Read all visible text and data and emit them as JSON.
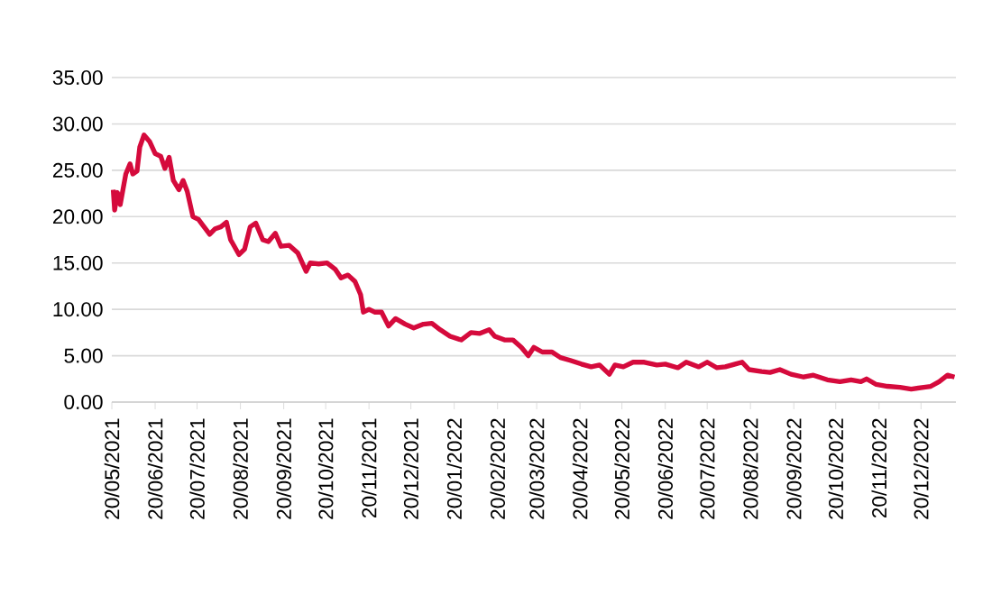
{
  "chart_data": {
    "type": "line",
    "color": "#d50a3c",
    "grid": "y",
    "ylim": [
      0,
      35
    ],
    "yticks": [
      {
        "value": 0,
        "label": "0.00"
      },
      {
        "value": 5,
        "label": "5.00"
      },
      {
        "value": 10,
        "label": "10.00"
      },
      {
        "value": 15,
        "label": "15.00"
      },
      {
        "value": 20,
        "label": "20.00"
      },
      {
        "value": 25,
        "label": "25.00"
      },
      {
        "value": 30,
        "label": "30.00"
      },
      {
        "value": 35,
        "label": "35.00"
      }
    ],
    "xlim": [
      "2021-05-20",
      "2023-01-14"
    ],
    "xticks": [
      {
        "value": "2021-05-20",
        "label": "20/05/2021"
      },
      {
        "value": "2021-06-20",
        "label": "20/06/2021"
      },
      {
        "value": "2021-07-20",
        "label": "20/07/2021"
      },
      {
        "value": "2021-08-20",
        "label": "20/08/2021"
      },
      {
        "value": "2021-09-20",
        "label": "20/09/2021"
      },
      {
        "value": "2021-10-20",
        "label": "20/10/2021"
      },
      {
        "value": "2021-11-20",
        "label": "20/11/2021"
      },
      {
        "value": "2021-12-20",
        "label": "20/12/2021"
      },
      {
        "value": "2022-01-20",
        "label": "20/01/2022"
      },
      {
        "value": "2022-02-20",
        "label": "20/02/2022"
      },
      {
        "value": "2022-03-20",
        "label": "20/03/2022"
      },
      {
        "value": "2022-04-20",
        "label": "20/04/2022"
      },
      {
        "value": "2022-05-20",
        "label": "20/05/2022"
      },
      {
        "value": "2022-06-20",
        "label": "20/06/2022"
      },
      {
        "value": "2022-07-20",
        "label": "20/07/2022"
      },
      {
        "value": "2022-08-20",
        "label": "20/08/2022"
      },
      {
        "value": "2022-09-20",
        "label": "20/09/2022"
      },
      {
        "value": "2022-10-20",
        "label": "20/10/2022"
      },
      {
        "value": "2022-11-20",
        "label": "20/11/2022"
      },
      {
        "value": "2022-12-20",
        "label": "20/12/2022"
      }
    ],
    "x": [
      "2021-05-21",
      "2021-05-22",
      "2021-05-24",
      "2021-05-26",
      "2021-05-30",
      "2021-06-02",
      "2021-06-04",
      "2021-06-07",
      "2021-06-09",
      "2021-06-12",
      "2021-06-16",
      "2021-06-20",
      "2021-06-24",
      "2021-06-27",
      "2021-06-30",
      "2021-07-03",
      "2021-07-07",
      "2021-07-10",
      "2021-07-13",
      "2021-07-17",
      "2021-07-21",
      "2021-07-24",
      "2021-07-29",
      "2021-08-02",
      "2021-08-06",
      "2021-08-10",
      "2021-08-13",
      "2021-08-19",
      "2021-08-23",
      "2021-08-27",
      "2021-08-31",
      "2021-09-05",
      "2021-09-09",
      "2021-09-14",
      "2021-09-18",
      "2021-09-24",
      "2021-09-30",
      "2021-10-06",
      "2021-10-09",
      "2021-10-15",
      "2021-10-21",
      "2021-10-27",
      "2021-10-31",
      "2021-11-05",
      "2021-11-10",
      "2021-11-14",
      "2021-11-16",
      "2021-11-20",
      "2021-11-24",
      "2021-11-29",
      "2021-12-04",
      "2021-12-09",
      "2021-12-16",
      "2021-12-22",
      "2021-12-29",
      "2022-01-04",
      "2022-01-10",
      "2022-01-17",
      "2022-01-25",
      "2022-02-01",
      "2022-02-07",
      "2022-02-14",
      "2022-02-18",
      "2022-02-25",
      "2022-03-03",
      "2022-03-09",
      "2022-03-14",
      "2022-03-18",
      "2022-03-24",
      "2022-03-31",
      "2022-04-06",
      "2022-04-13",
      "2022-04-21",
      "2022-04-28",
      "2022-05-04",
      "2022-05-11",
      "2022-05-15",
      "2022-05-21",
      "2022-05-28",
      "2022-06-05",
      "2022-06-14",
      "2022-06-20",
      "2022-06-29",
      "2022-07-05",
      "2022-07-14",
      "2022-07-20",
      "2022-07-27",
      "2022-08-02",
      "2022-08-09",
      "2022-08-14",
      "2022-08-19",
      "2022-08-28",
      "2022-09-03",
      "2022-09-10",
      "2022-09-18",
      "2022-09-27",
      "2022-10-04",
      "2022-10-14",
      "2022-10-23",
      "2022-10-31",
      "2022-11-07",
      "2022-11-11",
      "2022-11-18",
      "2022-11-26",
      "2022-12-05",
      "2022-12-13",
      "2022-12-22",
      "2022-12-27",
      "2023-01-02",
      "2023-01-08",
      "2023-01-13"
    ],
    "values": [
      22.9,
      20.7,
      22.6,
      21.3,
      24.6,
      25.7,
      24.6,
      24.9,
      27.5,
      28.8,
      28.1,
      26.8,
      26.5,
      25.2,
      26.4,
      23.9,
      22.9,
      23.9,
      22.7,
      20.0,
      19.7,
      19.1,
      18.1,
      18.7,
      18.9,
      19.4,
      17.5,
      15.9,
      16.5,
      18.9,
      19.3,
      17.5,
      17.3,
      18.2,
      16.8,
      16.9,
      16.1,
      14.1,
      15.0,
      14.9,
      15.0,
      14.3,
      13.4,
      13.7,
      13.0,
      11.6,
      9.7,
      10.0,
      9.7,
      9.7,
      8.2,
      9.0,
      8.4,
      8.0,
      8.4,
      8.5,
      7.8,
      7.1,
      6.7,
      7.5,
      7.4,
      7.8,
      7.1,
      6.7,
      6.7,
      5.9,
      5.0,
      5.9,
      5.4,
      5.4,
      4.8,
      4.5,
      4.1,
      3.8,
      4.0,
      3.0,
      4.0,
      3.8,
      4.3,
      4.3,
      4.0,
      4.1,
      3.7,
      4.3,
      3.8,
      4.3,
      3.7,
      3.8,
      4.1,
      4.3,
      3.5,
      3.3,
      3.2,
      3.5,
      3.0,
      2.7,
      2.9,
      2.4,
      2.2,
      2.4,
      2.2,
      2.5,
      1.9,
      1.7,
      1.6,
      1.4,
      1.6,
      1.7,
      2.2,
      2.9,
      2.7
    ]
  }
}
